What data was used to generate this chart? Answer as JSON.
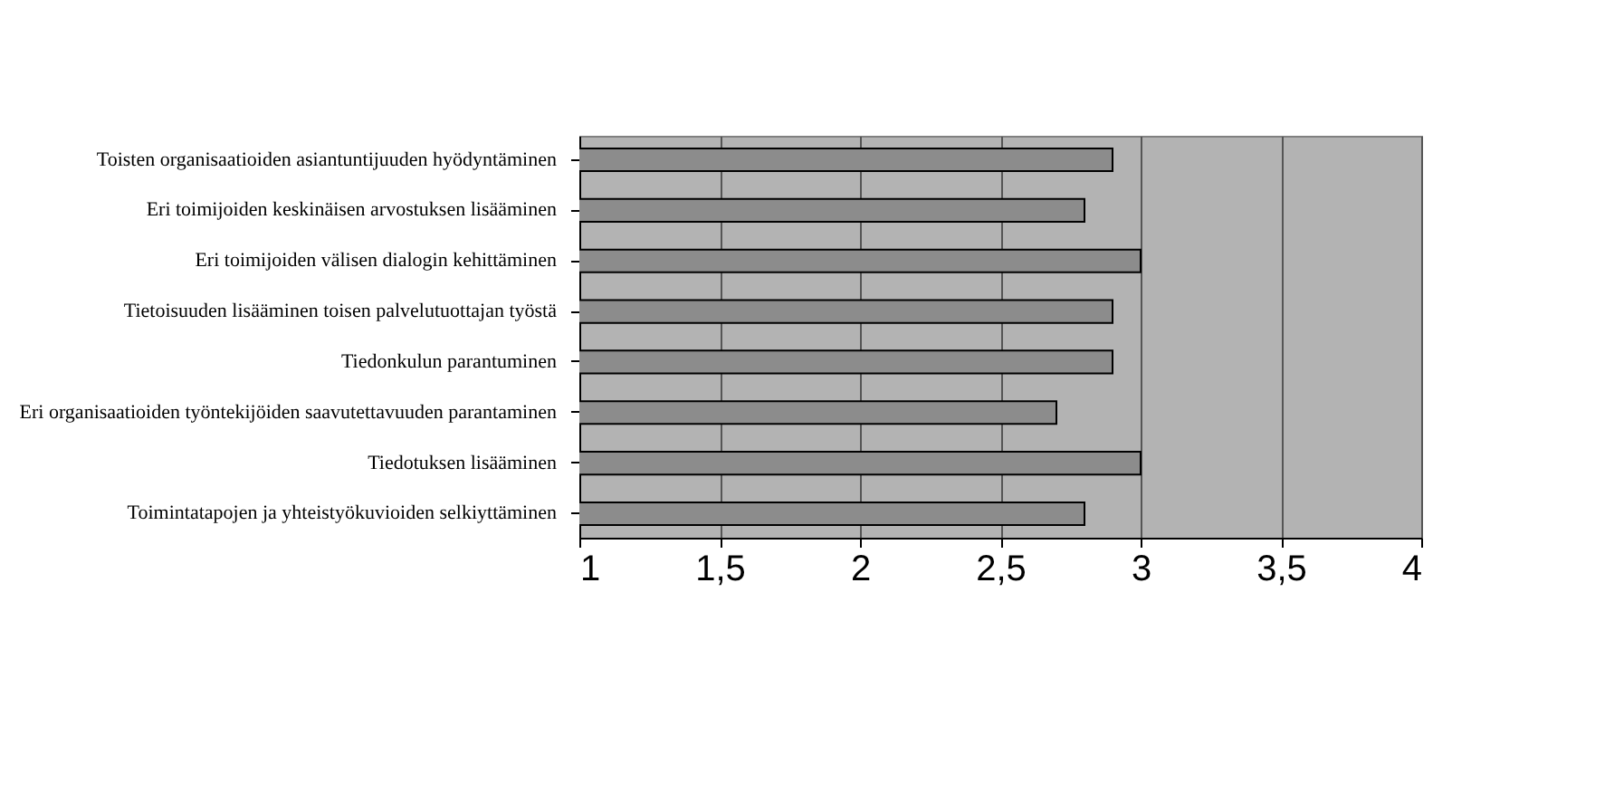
{
  "chart_data": {
    "type": "bar",
    "orientation": "horizontal",
    "categories": [
      "Toisten organisaatioiden asiantuntijuuden hyödyntäminen",
      "Eri toimijoiden keskinäisen arvostuksen lisääminen",
      "Eri toimijoiden välisen dialogin kehittäminen",
      "Tietoisuuden lisääminen toisen palvelutuottajan työstä",
      "Tiedonkulun parantuminen",
      "Eri organisaatioiden työntekijöiden saavutettavuuden parantaminen",
      "Tiedotuksen lisääminen",
      "Toimintatapojen ja yhteistyökuvioiden selkiyttäminen"
    ],
    "values": [
      2.9,
      2.8,
      3.0,
      2.9,
      2.9,
      2.7,
      3.0,
      2.8
    ],
    "color": "#8c8c8c",
    "xlim": [
      1,
      4
    ],
    "xticks": [
      1,
      {
        "value": 1.5,
        "label": "1,5"
      },
      2,
      {
        "value": 2.5,
        "label": "2,5"
      },
      3,
      {
        "value": 3.5,
        "label": "3,5"
      },
      4
    ],
    "grid": "x"
  }
}
